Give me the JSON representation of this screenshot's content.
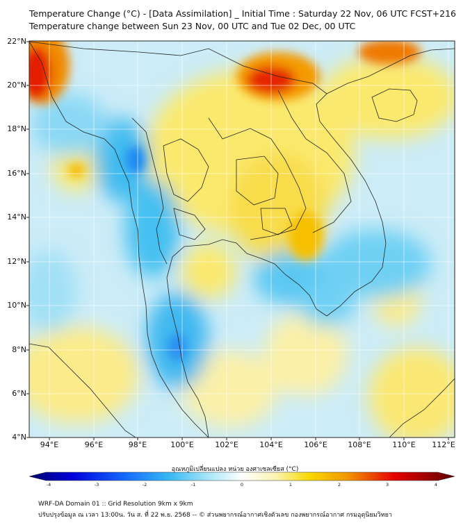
{
  "title": {
    "line1": "Temperature Change (°C) - [Data Assimilation] _ Initial Time : Saturday 22 Nov, 06 UTC FCST+216",
    "line2": "Temperature change between Sun 23 Nov, 00 UTC and Tue 02 Dec, 00 UTC"
  },
  "axes": {
    "lat_labels": [
      "22°N",
      "20°N",
      "18°N",
      "16°N",
      "14°N",
      "12°N",
      "10°N",
      "8°N",
      "6°N",
      "4°N"
    ],
    "lon_labels": [
      "94°E",
      "96°E",
      "98°E",
      "100°E",
      "102°E",
      "104°E",
      "106°E",
      "108°E",
      "110°E",
      "112°E"
    ]
  },
  "colorbar": {
    "label": "อุณหภูมิเปลี่ยนแปลง หน่วย องศาเซลเซียส (°C)",
    "ticks": [
      "-4",
      "-3",
      "-2",
      "-1",
      "0",
      "1",
      "2",
      "3",
      "4"
    ],
    "min": -4,
    "max": 4,
    "colors": [
      "#00006e",
      "#0000d8",
      "#1466ff",
      "#38b8f2",
      "#7fdcf8",
      "#d8f4fb",
      "#ffffff",
      "#fbf6c9",
      "#fbe873",
      "#f8c000",
      "#f07800",
      "#e40000",
      "#a00000",
      "#5e0000"
    ]
  },
  "footer": {
    "line1": "WRF-DA Domain 01 :: Grid Resolution 9km x 9km",
    "line2": "ปรับปรุงข้อมูล ณ เวลา 13:00น. วัน ส. ที่ 22 พ.ย. 2568 -- © ส่วนพยากรณ์อากาศเชิงตัวเลข กองพยากรณ์อากาศ กรมอุตุนิยมวิทยา"
  },
  "map_regions": [
    {
      "name": "northwest-warm-core",
      "value": 3.2
    },
    {
      "name": "north-vietnam-warm-core",
      "value": 2.8
    },
    {
      "name": "hainan-warm",
      "value": 2.5
    },
    {
      "name": "northeast-thailand-warm",
      "value": 1.4
    },
    {
      "name": "andaman-cool",
      "value": -2.0
    },
    {
      "name": "western-thailand-cool",
      "value": -2.2
    },
    {
      "name": "gulf-of-thailand-cool",
      "value": -1.6
    },
    {
      "name": "south-china-sea-cool",
      "value": -1.3
    },
    {
      "name": "southern-sea-warm",
      "value": 1.2
    }
  ]
}
